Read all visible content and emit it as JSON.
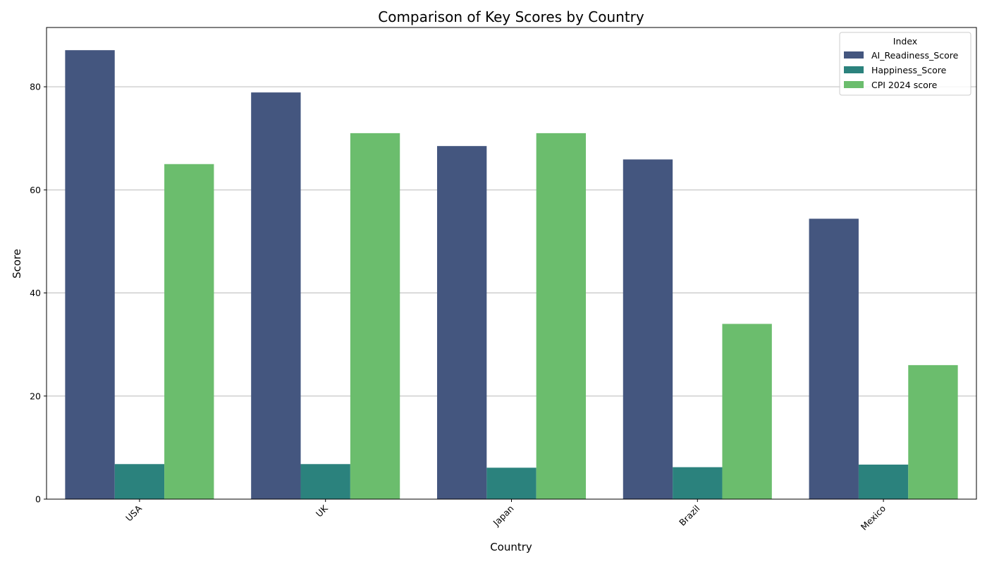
{
  "chart_data": {
    "type": "bar",
    "title": "Comparison of Key Scores by Country",
    "xlabel": "Country",
    "ylabel": "Score",
    "categories": [
      "USA",
      "UK",
      "Japan",
      "Brazil",
      "Mexico"
    ],
    "series": [
      {
        "name": "AI_Readiness_Score",
        "color": "#44567f",
        "values": [
          87.1,
          78.9,
          68.5,
          65.9,
          54.4
        ]
      },
      {
        "name": "Happiness_Score",
        "color": "#2b827d",
        "values": [
          6.8,
          6.8,
          6.1,
          6.2,
          6.7
        ]
      },
      {
        "name": "CPI 2024 score",
        "color": "#6bbd6d",
        "values": [
          65,
          71,
          71,
          34,
          26
        ]
      }
    ],
    "ylim": [
      0,
      91.5
    ],
    "yticks": [
      0,
      20,
      40,
      60,
      80
    ],
    "grid": "y",
    "legend": {
      "title": "Index",
      "position": "top-right"
    },
    "xtick_rotation": 45
  }
}
